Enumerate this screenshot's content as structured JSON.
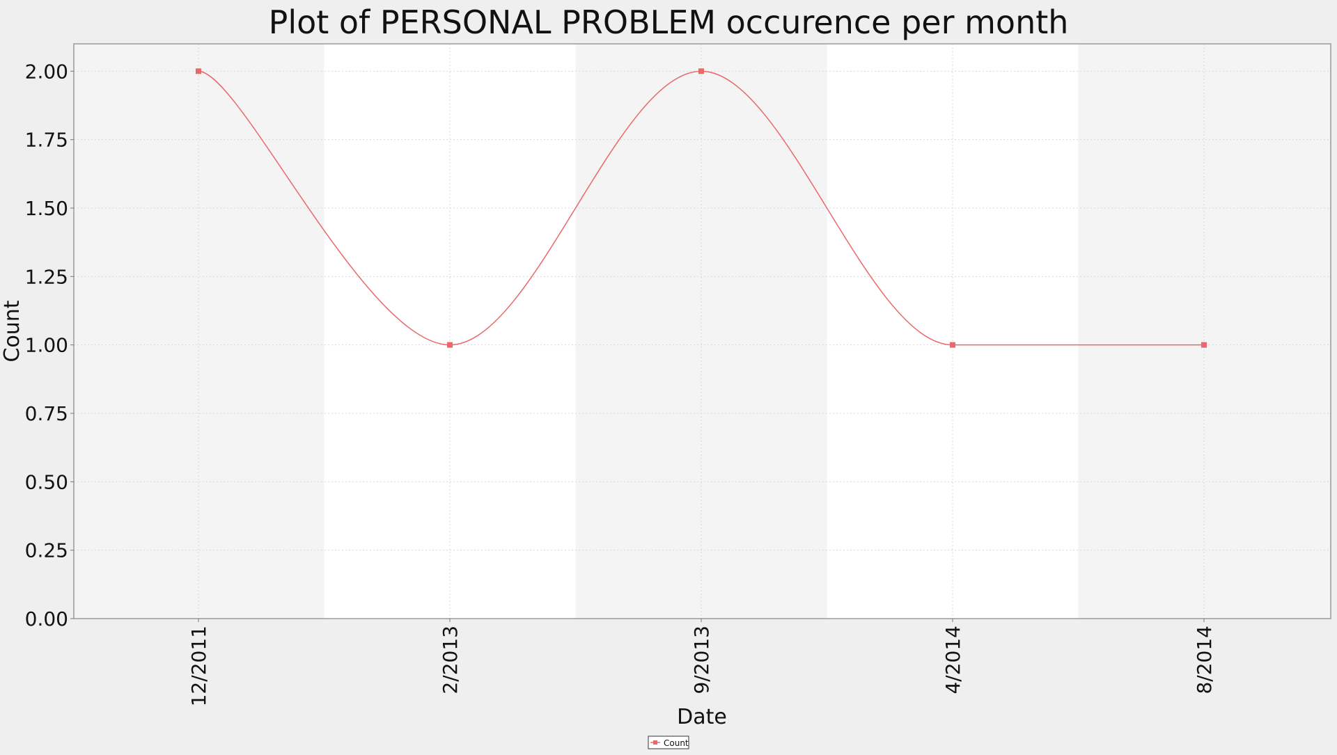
{
  "chart_data": {
    "type": "line",
    "title": "Plot of PERSONAL PROBLEM occurence per month",
    "xlabel": "Date",
    "ylabel": "Count",
    "ylim": [
      0,
      2.1
    ],
    "yticks": [
      "0.00",
      "0.25",
      "0.50",
      "0.75",
      "1.00",
      "1.25",
      "1.50",
      "1.75",
      "2.00"
    ],
    "xticks": [
      "12/2011",
      "2/2013",
      "9/2013",
      "4/2014",
      "8/2014"
    ],
    "grid": true,
    "legend": {
      "position": "bottom-center",
      "entries": [
        "Count"
      ]
    },
    "colors": {
      "series": "#e8686b",
      "band_light": "#ffffff",
      "band_dark": "#f4f4f4",
      "page_bg": "#efefef",
      "grid": "#d8d8d8"
    },
    "series": [
      {
        "name": "Count",
        "points": [
          {
            "x": "12/2011",
            "y": 2.0
          },
          {
            "x": "2/2013",
            "y": 1.0
          },
          {
            "x": "9/2013",
            "y": 2.0
          },
          {
            "x": "4/2014",
            "y": 1.0
          },
          {
            "x": "8/2014",
            "y": 1.0
          }
        ]
      }
    ]
  }
}
